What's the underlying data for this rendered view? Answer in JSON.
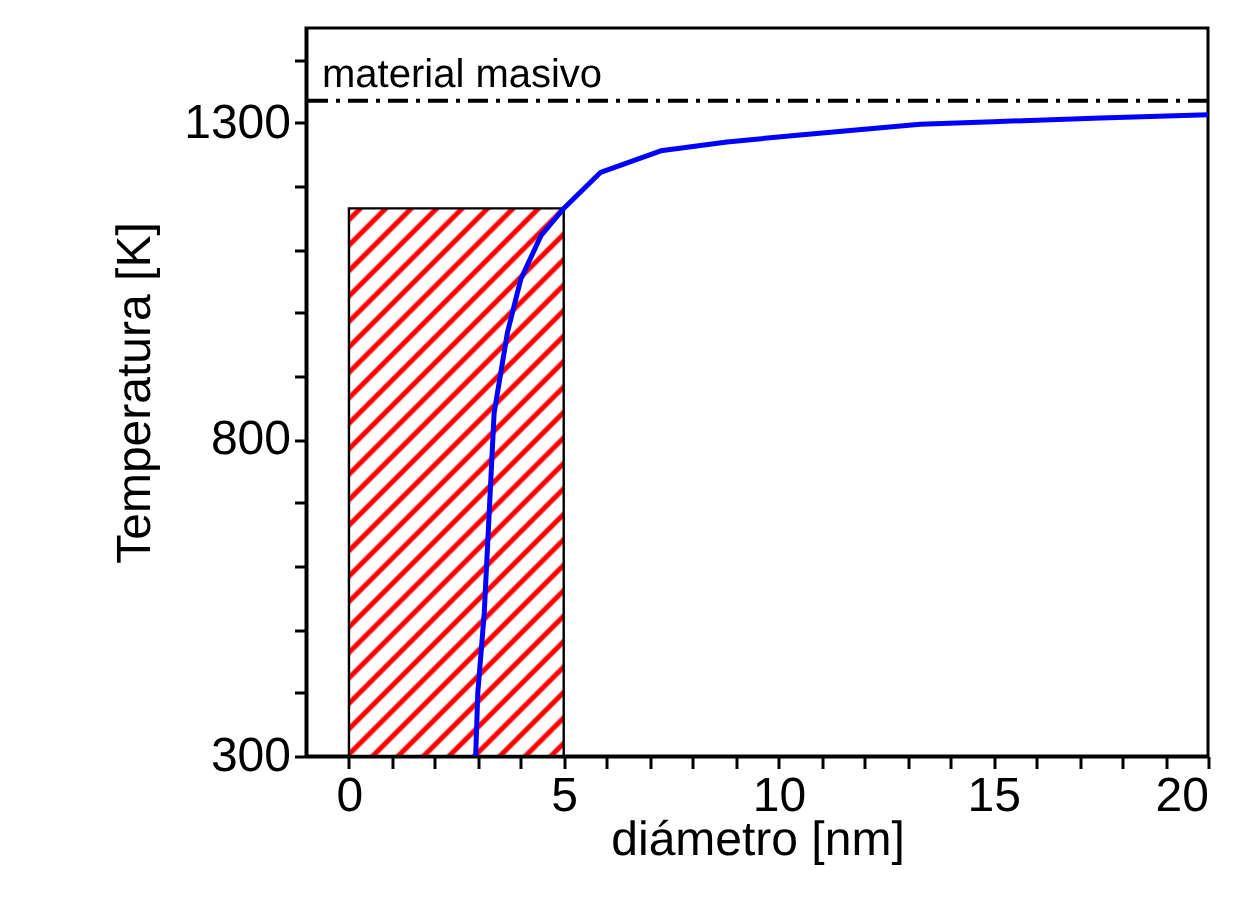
{
  "chart_data": {
    "type": "line",
    "xlabel": "diámetro [nm]",
    "ylabel": "Temperatura [K]",
    "x": [
      2.95,
      3.0,
      3.15,
      3.38,
      3.69,
      4.0,
      4.47,
      5.0,
      5.86,
      7.26,
      8.8,
      10.5,
      13.3,
      15,
      17.5,
      20
    ],
    "series": [
      {
        "color": "#0000ff",
        "values": [
          300,
          400,
          526,
          842,
          969,
          1053,
          1122,
          1165,
          1222,
          1256,
          1270,
          1281,
          1298,
          1302,
          1308,
          1313
        ]
      }
    ],
    "xlim": [
      -1,
      20
    ],
    "ylim": [
      300,
      1450
    ],
    "xticks": [
      0,
      {
        "value": 1,
        "label": null
      },
      {
        "value": 2,
        "label": null
      },
      {
        "value": 3,
        "label": null
      },
      {
        "value": 4,
        "label": null
      },
      5,
      {
        "value": 6,
        "label": null
      },
      {
        "value": 7,
        "label": null
      },
      {
        "value": 8,
        "label": null
      },
      {
        "value": 9,
        "label": null
      },
      10,
      {
        "value": 11,
        "label": null
      },
      {
        "value": 12,
        "label": null
      },
      {
        "value": 13,
        "label": null
      },
      {
        "value": 14,
        "label": null
      },
      15,
      {
        "value": 16,
        "label": null
      },
      {
        "value": 17,
        "label": null
      },
      {
        "value": 18,
        "label": null
      },
      {
        "value": 19,
        "label": null
      },
      20
    ],
    "yticks": [
      300,
      {
        "value": 400,
        "label": null
      },
      {
        "value": 500,
        "label": null
      },
      {
        "value": 600,
        "label": null
      },
      {
        "value": 700,
        "label": null
      },
      800,
      {
        "value": 900,
        "label": null
      },
      {
        "value": 1000,
        "label": null
      },
      {
        "value": 1100,
        "label": null
      },
      {
        "value": 1200,
        "label": null
      },
      1300,
      {
        "value": 1400,
        "label": null
      }
    ],
    "ref_lines": [
      {
        "axis": "y",
        "value": 1335,
        "label": "material masivo",
        "color": "#000000",
        "line_style": "dashdot"
      }
    ],
    "bands": [
      {
        "axis": "x",
        "from": 0,
        "to": 5,
        "color": "#ff0000"
      }
    ],
    "grid": false,
    "marker": "none",
    "line_style": "solid"
  }
}
